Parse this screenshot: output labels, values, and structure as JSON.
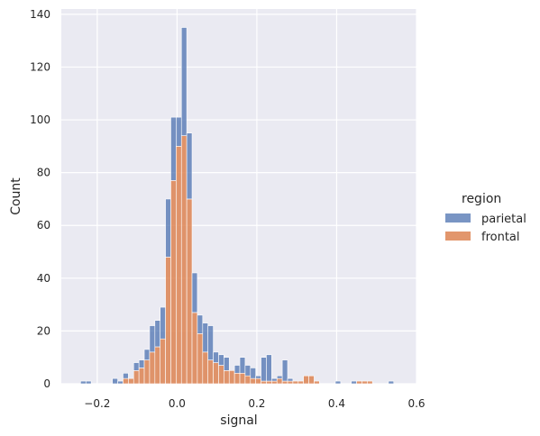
{
  "chart_data": {
    "type": "bar",
    "stacked": true,
    "xlabel": "signal",
    "ylabel": "Count",
    "xlim": [
      -0.29,
      0.6
    ],
    "ylim": [
      0,
      142
    ],
    "x_ticks": [
      -0.2,
      0.0,
      0.2,
      0.4,
      0.6
    ],
    "x_tick_labels": [
      "−0.2",
      "0.0",
      "0.2",
      "0.4",
      "0.6"
    ],
    "y_ticks": [
      0,
      20,
      40,
      60,
      80,
      100,
      120,
      140
    ],
    "y_tick_labels": [
      "0",
      "20",
      "40",
      "60",
      "80",
      "100",
      "120",
      "140"
    ],
    "grid": true,
    "legend_title": "region",
    "legend_position": "right",
    "bin_start": -0.255,
    "bin_width": 0.0133,
    "series": [
      {
        "name": "frontal",
        "color": "#dd8452",
        "values": [
          0,
          0,
          0,
          0,
          0,
          0,
          0,
          0,
          0,
          2,
          2,
          5,
          6,
          9,
          12,
          14,
          17,
          48,
          77,
          90,
          94,
          70,
          27,
          19,
          12,
          9,
          8,
          7,
          5,
          5,
          4,
          4,
          3,
          2,
          2,
          1,
          1,
          1,
          2,
          1,
          1,
          1,
          1,
          3,
          3,
          1,
          0,
          0,
          0,
          0,
          0,
          0,
          0,
          1,
          1,
          1,
          0,
          0,
          0,
          0
        ]
      },
      {
        "name": "parietal",
        "color": "#4c72b0",
        "values": [
          0,
          1,
          1,
          0,
          0,
          0,
          0,
          2,
          1,
          2,
          0,
          3,
          3,
          4,
          10,
          10,
          12,
          22,
          24,
          11,
          41,
          25,
          15,
          7,
          11,
          13,
          4,
          4,
          5,
          0,
          3,
          6,
          4,
          4,
          1,
          9,
          10,
          1,
          1,
          8,
          1,
          0,
          0,
          0,
          0,
          0,
          0,
          0,
          0,
          1,
          0,
          0,
          1,
          0,
          0,
          0,
          0,
          0,
          0,
          1
        ]
      }
    ]
  }
}
